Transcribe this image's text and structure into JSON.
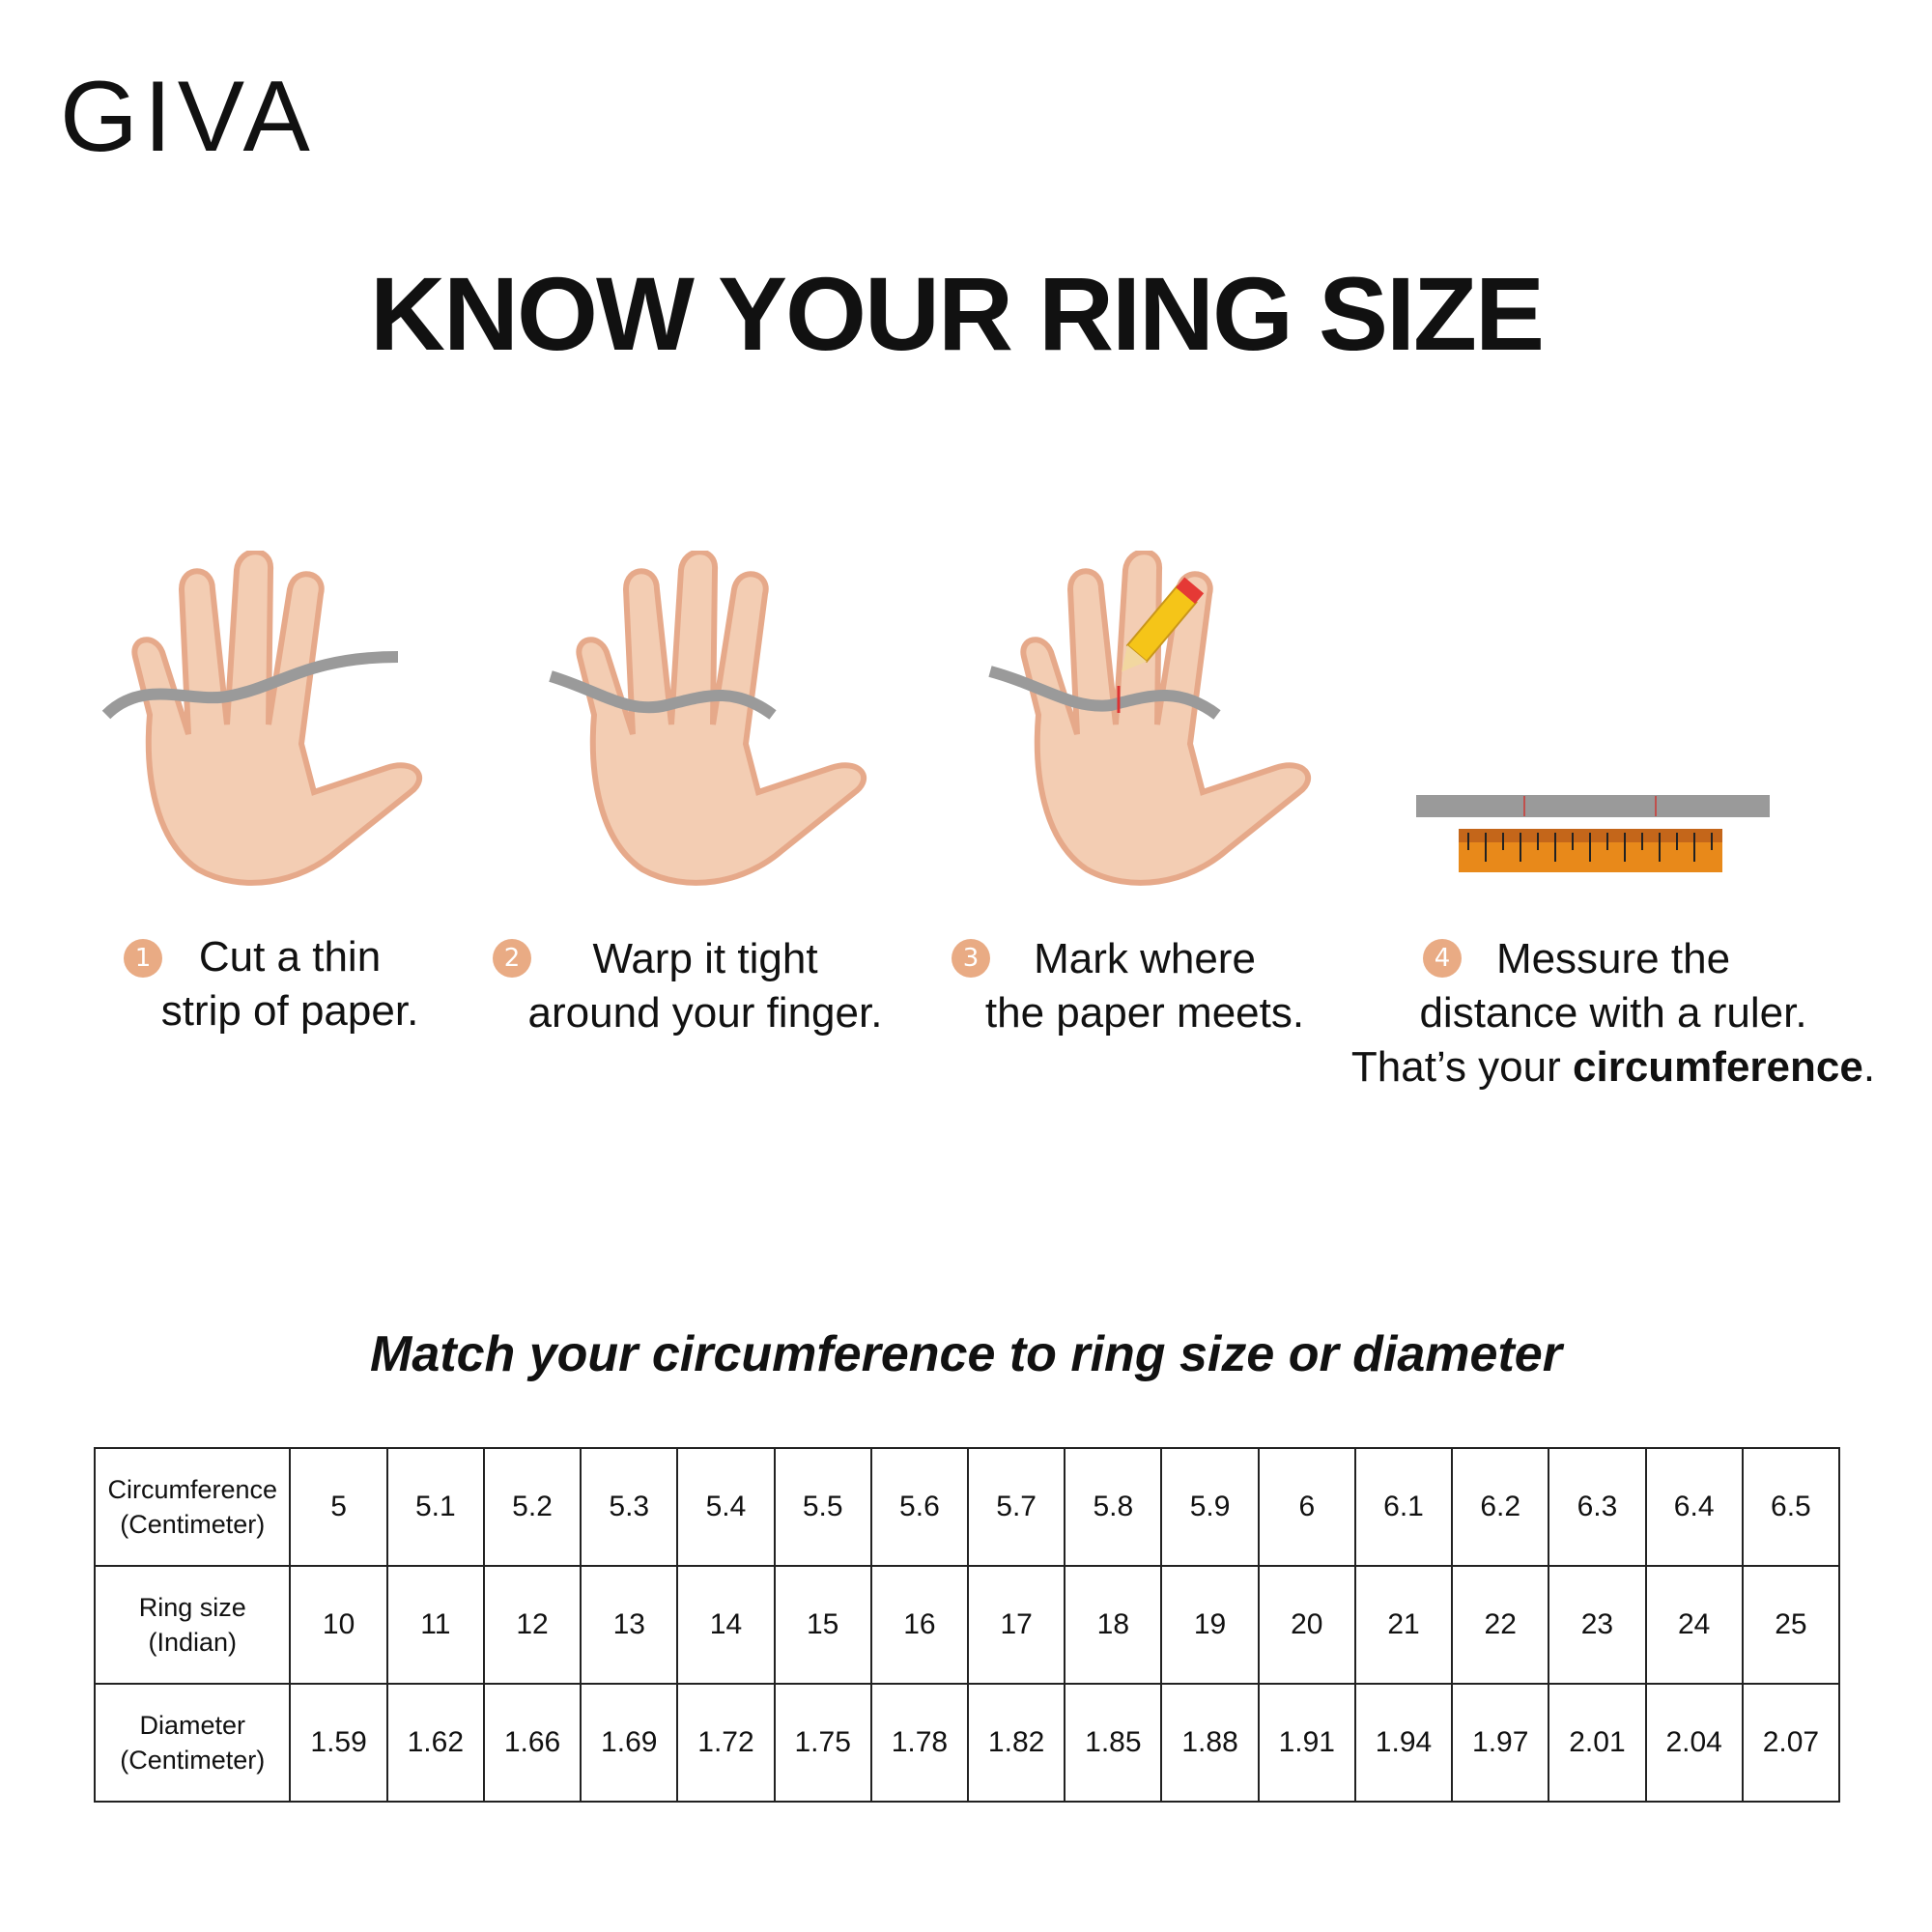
{
  "brand": "GIVA",
  "title": "KNOW YOUR RING SIZE",
  "steps": [
    {
      "number": "1",
      "line1": "Cut a thin",
      "line2": "strip of paper."
    },
    {
      "number": "2",
      "line1": "Warp it tight",
      "line2": "around your finger."
    },
    {
      "number": "3",
      "line1": "Mark where",
      "line2": "the paper meets."
    },
    {
      "number": "4",
      "line1": "Messure the",
      "line2": "distance with a ruler.",
      "line3_prefix": "That’s your ",
      "line3_bold": "circumference",
      "line3_suffix": "."
    }
  ],
  "subtitle": "Match your circumference to ring size or diameter",
  "table": {
    "rows": [
      {
        "header": [
          "Circumference",
          "(Centimeter)"
        ],
        "values": [
          "5",
          "5.1",
          "5.2",
          "5.3",
          "5.4",
          "5.5",
          "5.6",
          "5.7",
          "5.8",
          "5.9",
          "6",
          "6.1",
          "6.2",
          "6.3",
          "6.4",
          "6.5"
        ]
      },
      {
        "header": [
          "Ring size",
          "(Indian)"
        ],
        "values": [
          "10",
          "11",
          "12",
          "13",
          "14",
          "15",
          "16",
          "17",
          "18",
          "19",
          "20",
          "21",
          "22",
          "23",
          "24",
          "25"
        ]
      },
      {
        "header": [
          "Diameter",
          "(Centimeter)"
        ],
        "values": [
          "1.59",
          "1.62",
          "1.66",
          "1.69",
          "1.72",
          "1.75",
          "1.78",
          "1.82",
          "1.85",
          "1.88",
          "1.91",
          "1.94",
          "1.97",
          "2.01",
          "2.04",
          "2.07"
        ]
      }
    ]
  },
  "colors": {
    "skin": "#f3cdb3",
    "skin_shadow": "#e6a98a",
    "paper": "#9a9a9a",
    "ruler": "#e8891a",
    "badge": "#e9ab84"
  }
}
